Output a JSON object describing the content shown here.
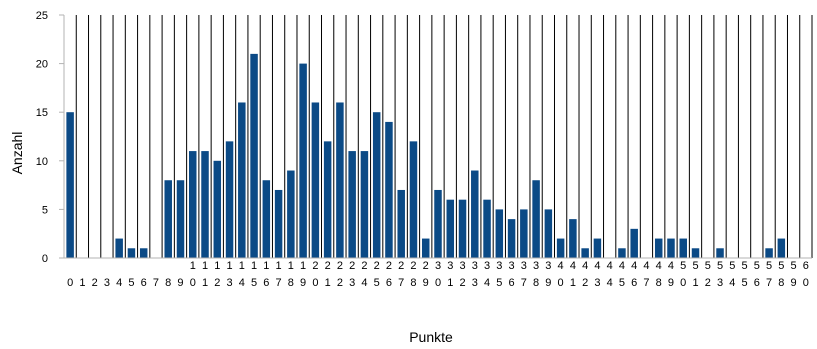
{
  "chart_data": {
    "type": "bar",
    "xlabel": "Punkte",
    "ylabel": "Anzahl",
    "ylim": [
      0,
      25
    ],
    "yticks": [
      0,
      5,
      10,
      15,
      20,
      25
    ],
    "grid": "vertical lines between categories",
    "legend": "none",
    "categories": [
      "0",
      "1",
      "2",
      "3",
      "4",
      "5",
      "6",
      "7",
      "8",
      "9",
      "10",
      "11",
      "12",
      "13",
      "14",
      "15",
      "16",
      "17",
      "18",
      "19",
      "20",
      "21",
      "22",
      "23",
      "24",
      "25",
      "26",
      "27",
      "28",
      "29",
      "30",
      "31",
      "32",
      "33",
      "34",
      "35",
      "36",
      "37",
      "38",
      "39",
      "40",
      "41",
      "42",
      "43",
      "44",
      "45",
      "46",
      "47",
      "48",
      "49",
      "50",
      "51",
      "52",
      "53",
      "54",
      "55",
      "56",
      "57",
      "58",
      "59",
      "60"
    ],
    "values": [
      15,
      0,
      0,
      0,
      2,
      1,
      1,
      0,
      8,
      8,
      11,
      11,
      10,
      12,
      16,
      21,
      8,
      7,
      9,
      20,
      16,
      12,
      16,
      11,
      11,
      15,
      14,
      7,
      12,
      2,
      7,
      6,
      6,
      9,
      6,
      5,
      4,
      5,
      8,
      5,
      2,
      4,
      1,
      2,
      0,
      1,
      3,
      0,
      2,
      2,
      2,
      1,
      0,
      1,
      0,
      0,
      0,
      1,
      2,
      0,
      0
    ],
    "colors": {
      "bar": "#0b4a86",
      "gridline": "#000000",
      "axis": "#b3b3b3"
    }
  }
}
